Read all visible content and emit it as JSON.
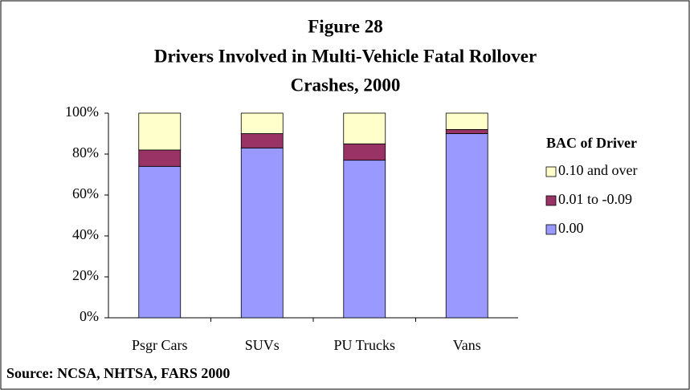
{
  "chart_data": {
    "type": "stacked_bar",
    "title": [
      "Figure 28",
      "Drivers Involved in Multi-Vehicle Fatal Rollover",
      "Crashes, 2000"
    ],
    "categories": [
      "Psgr Cars",
      "SUVs",
      "PU Trucks",
      "Vans"
    ],
    "series": [
      {
        "name": "0.00",
        "color": "#9999ff",
        "values": [
          74,
          83,
          77,
          90
        ]
      },
      {
        "name": "0.01 to -0.09",
        "color": "#993366",
        "values": [
          8,
          7,
          8,
          2
        ]
      },
      {
        "name": "0.10 and over",
        "color": "#ffffcc",
        "values": [
          18,
          10,
          15,
          8
        ]
      }
    ],
    "ylim": [
      0,
      100
    ],
    "yticks": [
      {
        "value": 0,
        "label": "0%"
      },
      {
        "value": 20,
        "label": "20%"
      },
      {
        "value": 40,
        "label": "40%"
      },
      {
        "value": 60,
        "label": "60%"
      },
      {
        "value": 80,
        "label": "80%"
      },
      {
        "value": 100,
        "label": "100%"
      }
    ],
    "grid": true,
    "legend_title": "BAC of Driver",
    "legend": "right",
    "source": "Source: NCSA, NHTSA, FARS 2000"
  }
}
